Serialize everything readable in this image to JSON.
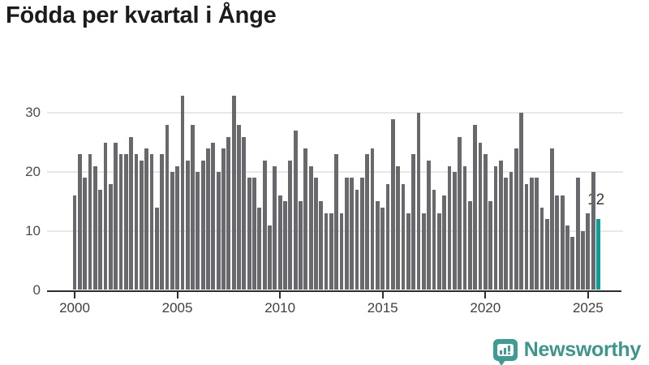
{
  "header": {
    "title": "Födda per kvartal i Ånge"
  },
  "chart_data": {
    "type": "bar",
    "title": "Födda per kvartal i Ånge",
    "x_start": "2000 Q1",
    "x_end": "2025 Q3",
    "frequency": "quarterly",
    "values": [
      16,
      23,
      19,
      23,
      21,
      17,
      25,
      18,
      25,
      23,
      23,
      26,
      23,
      22,
      24,
      23,
      14,
      23,
      28,
      20,
      21,
      33,
      22,
      28,
      20,
      22,
      24,
      25,
      20,
      24,
      26,
      33,
      28,
      26,
      19,
      19,
      14,
      22,
      11,
      21,
      16,
      15,
      22,
      27,
      15,
      24,
      21,
      19,
      15,
      13,
      13,
      23,
      13,
      19,
      19,
      17,
      19,
      23,
      24,
      15,
      14,
      18,
      29,
      21,
      18,
      13,
      23,
      30,
      13,
      22,
      17,
      13,
      16,
      21,
      20,
      26,
      21,
      15,
      28,
      25,
      23,
      15,
      21,
      22,
      19,
      20,
      24,
      30,
      18,
      19,
      19,
      14,
      12,
      24,
      16,
      16,
      11,
      9,
      19,
      10,
      13,
      20,
      12
    ],
    "x_tick_labels": [
      "2000",
      "2005",
      "2010",
      "2015",
      "2020",
      "2025"
    ],
    "x_tick_indices": [
      0,
      20,
      40,
      60,
      80,
      100
    ],
    "y_ticks": [
      0,
      10,
      20,
      30
    ],
    "ylim": [
      0,
      35
    ],
    "grid": "horizontal",
    "legend": "none",
    "bar_color": "#69696d",
    "highlight_color": "#0a9e96",
    "highlight_index": 102,
    "annotation_label": "12",
    "annotation_value": 12
  },
  "footer": {
    "logo_text": "Newsworthy",
    "logo_color": "#3a968e"
  }
}
